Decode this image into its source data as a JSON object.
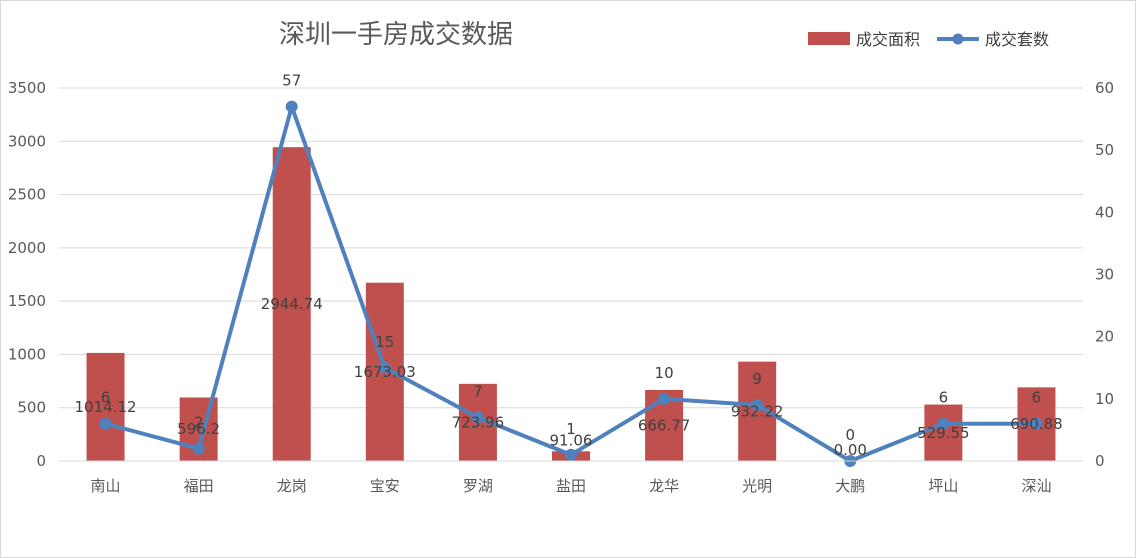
{
  "chart_data": {
    "type": "bar",
    "title": "深圳一手房成交数据",
    "categories": [
      "南山",
      "福田",
      "龙岗",
      "宝安",
      "罗湖",
      "盐田",
      "龙华",
      "光明",
      "大鹏",
      "坪山",
      "深汕"
    ],
    "series": [
      {
        "name": "成交面积",
        "type": "bar",
        "axis": "left",
        "color": "#c0504d",
        "values": [
          1014.12,
          596.2,
          2944.74,
          1673.03,
          723.96,
          91.06,
          666.77,
          932.22,
          0.0,
          529.55,
          690.88
        ],
        "labels": [
          "1014.12",
          "596.2",
          "2944.74",
          "1673.03",
          "723.96",
          "91.06",
          "666.77",
          "932.22",
          "0.00",
          "529.55",
          "690.88"
        ]
      },
      {
        "name": "成交套数",
        "type": "line",
        "axis": "right",
        "color": "#4f81bd",
        "values": [
          6,
          2,
          57,
          15,
          7,
          1,
          10,
          9,
          0,
          6,
          6
        ],
        "labels": [
          "6",
          "2",
          "57",
          "15",
          "7",
          "1",
          "10",
          "9",
          "0",
          "6",
          "6"
        ]
      }
    ],
    "y_left": {
      "min": 0,
      "max": 3500,
      "step": 500,
      "ticks": [
        "0",
        "500",
        "1000",
        "1500",
        "2000",
        "2500",
        "3000",
        "3500"
      ]
    },
    "y_right": {
      "min": 0,
      "max": 60,
      "step": 10,
      "ticks": [
        "0",
        "10",
        "20",
        "30",
        "40",
        "50",
        "60"
      ]
    },
    "grid": true,
    "legend_position": "top-right"
  }
}
